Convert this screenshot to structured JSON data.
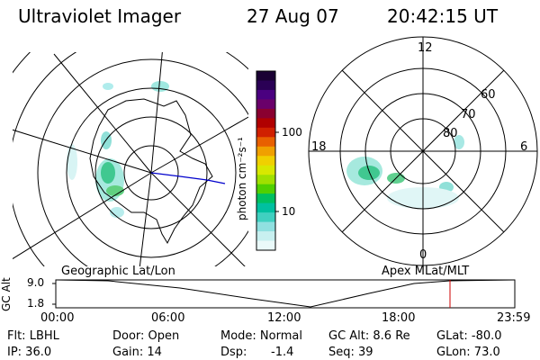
{
  "header": {
    "instrument": "Ultraviolet Imager",
    "date": "27 Aug 07",
    "time": "20:42:15 UT"
  },
  "geo_panel": {
    "caption": "Geographic Lat/Lon"
  },
  "mag_panel": {
    "caption": "Apex MLat/MLT",
    "mlt_labels": [
      "12",
      "18",
      "6",
      "0"
    ],
    "mlat_labels": [
      "60",
      "70",
      "80"
    ]
  },
  "colorbar": {
    "unit_label": "photon cm⁻²s⁻¹",
    "ticks": [
      "100",
      "10"
    ],
    "colors": [
      "#1a0033",
      "#2a0055",
      "#4a0080",
      "#6a006a",
      "#8a0030",
      "#b00000",
      "#d02000",
      "#e86000",
      "#f0a000",
      "#f0d000",
      "#d8e800",
      "#a0e000",
      "#50d000",
      "#00c060",
      "#00c0a0",
      "#40d0c0",
      "#90e0e0",
      "#c8f0f0",
      "#eafafa"
    ]
  },
  "altitude_plot": {
    "y_label": "GC Alt",
    "y_ticks": [
      "9.0",
      "1.8"
    ],
    "x_ticks": [
      "00:00",
      "06:00",
      "12:00",
      "18:00",
      "23:59"
    ],
    "current_time_marker": "20:42"
  },
  "footer": {
    "filter": "Flt: LBHL",
    "ip": "IP: 36.0",
    "door": "Door: Open",
    "gain": "Gain: 14",
    "mode": "Mode: Normal",
    "dsp_label": "Dsp:",
    "dsp_value": "-1.4",
    "gc_alt": "GC Alt: 8.6 Re",
    "seq": "Seq: 39",
    "glat": "GLat: -80.0",
    "glon": "GLon: 73.0"
  }
}
